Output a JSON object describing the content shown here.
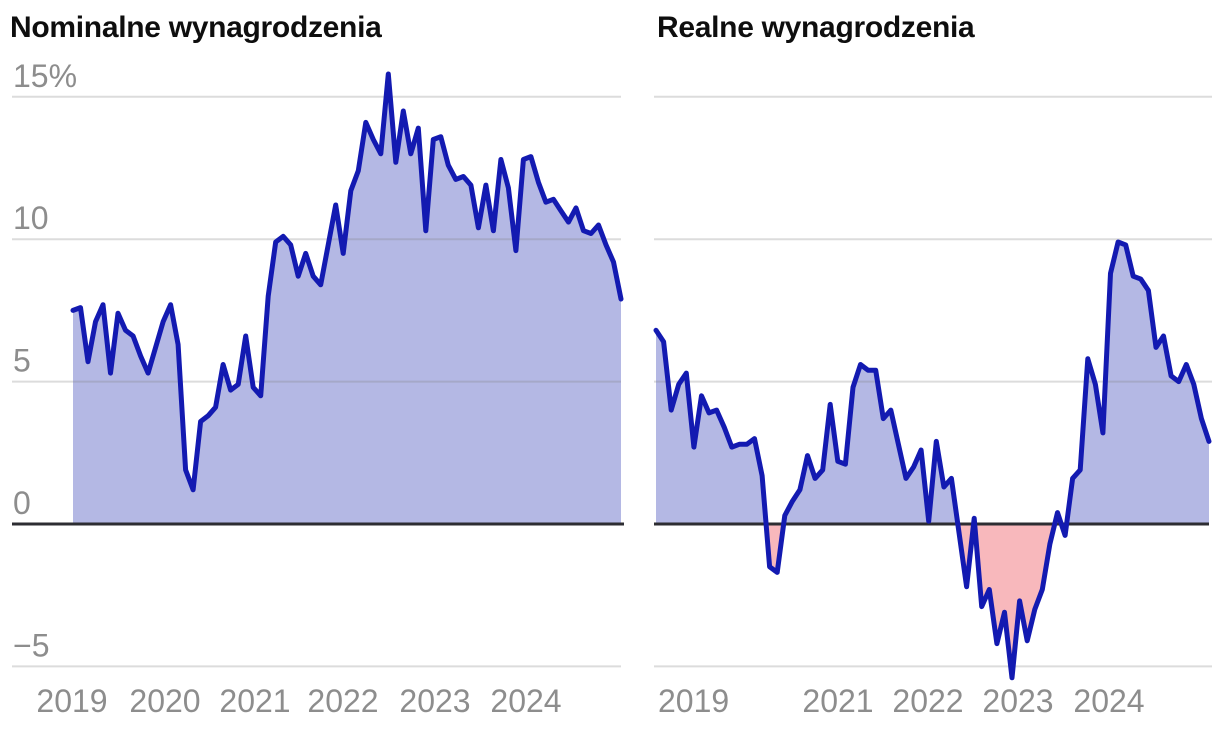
{
  "figure": {
    "charts": [
      {
        "title": "Nominalne wynagrodzenia"
      },
      {
        "title": "Realne wynagrodzenia"
      }
    ]
  },
  "chart_data": [
    {
      "type": "area",
      "title": "Nominalne wynagrodzenia",
      "unit": "percent, year-over-year",
      "frequency": "monthly",
      "x_start": "2019-01",
      "x_end": "2025-02",
      "x_tick_labels": [
        "2019",
        "2020",
        "2021",
        "2022",
        "2023",
        "2024"
      ],
      "y_tick_labels": [
        "15%",
        "10",
        "5",
        "0",
        "−5"
      ],
      "y_tick_values": [
        15,
        10,
        5,
        0,
        -5
      ],
      "ylim": [
        -6.5,
        16.2
      ],
      "grid": true,
      "legend": "none",
      "line_color": "#131ab1",
      "positive_fill": "#b4b8e4",
      "negative_fill": "#f8b8bc",
      "zero_line_color": "#2d2d32",
      "values": [
        7.5,
        7.6,
        5.7,
        7.1,
        7.7,
        5.3,
        7.4,
        6.8,
        6.6,
        5.9,
        5.3,
        6.2,
        7.1,
        7.7,
        6.3,
        1.9,
        1.2,
        3.6,
        3.8,
        4.1,
        5.6,
        4.7,
        4.9,
        6.6,
        4.8,
        4.5,
        8.0,
        9.9,
        10.1,
        9.8,
        8.7,
        9.5,
        8.7,
        8.4,
        9.8,
        11.2,
        9.5,
        11.7,
        12.4,
        14.1,
        13.5,
        13.0,
        15.8,
        12.7,
        14.5,
        13.0,
        13.9,
        10.3,
        13.5,
        13.6,
        12.6,
        12.1,
        12.2,
        11.9,
        10.4,
        11.9,
        10.3,
        12.8,
        11.8,
        9.6,
        12.8,
        12.9,
        12.0,
        11.3,
        11.4,
        11.0,
        10.6,
        11.1,
        10.3,
        10.2,
        10.5,
        9.8,
        9.2,
        7.9
      ]
    },
    {
      "type": "area",
      "title": "Realne wynagrodzenia",
      "unit": "percent, year-over-year",
      "frequency": "monthly",
      "x_start": "2019-01",
      "x_end": "2025-02",
      "x_tick_labels": [
        "2019",
        "2021",
        "2022",
        "2023",
        "2024"
      ],
      "y_tick_labels": [],
      "y_tick_values": [
        15,
        10,
        5,
        0,
        -5
      ],
      "ylim": [
        -6.5,
        16.2
      ],
      "grid": true,
      "legend": "none",
      "line_color": "#131ab1",
      "positive_fill": "#b4b8e4",
      "negative_fill": "#f8b8bc",
      "zero_line_color": "#2d2d32",
      "values": [
        6.8,
        6.4,
        4.0,
        4.9,
        5.3,
        2.7,
        4.5,
        3.9,
        4.0,
        3.4,
        2.7,
        2.8,
        2.8,
        3.0,
        1.7,
        -1.5,
        -1.7,
        0.3,
        0.8,
        1.2,
        2.4,
        1.6,
        1.9,
        4.2,
        2.2,
        2.1,
        4.8,
        5.6,
        5.4,
        5.4,
        3.7,
        4.0,
        2.8,
        1.6,
        2.0,
        2.6,
        0.1,
        2.9,
        1.3,
        1.6,
        -0.3,
        -2.2,
        0.2,
        -2.9,
        -2.3,
        -4.2,
        -3.1,
        -5.4,
        -2.7,
        -4.1,
        -3.0,
        -2.3,
        -0.7,
        0.4,
        -0.4,
        1.6,
        1.9,
        5.8,
        4.9,
        3.2,
        8.8,
        9.9,
        9.8,
        8.7,
        8.6,
        8.2,
        6.2,
        6.6,
        5.2,
        5.0,
        5.6,
        4.9,
        3.7,
        2.9
      ]
    }
  ]
}
